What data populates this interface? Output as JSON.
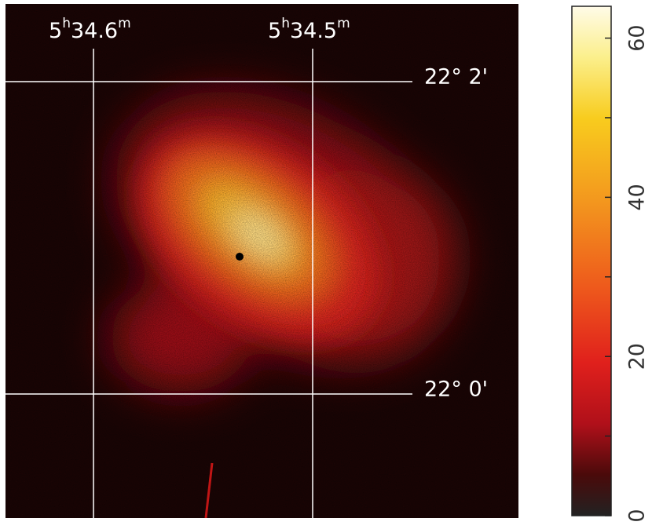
{
  "image": {
    "ra_labels": [
      {
        "hours": "5",
        "h": "h",
        "minutes": "34.6",
        "m": "m"
      },
      {
        "hours": "5",
        "h": "h",
        "minutes": "34.5",
        "m": "m"
      }
    ],
    "dec_labels": [
      "22° 2'",
      "22° 0'"
    ]
  },
  "colorbar": {
    "lim": [
      0,
      64
    ],
    "ticks": [
      0,
      20,
      40,
      60
    ],
    "minor_ticks": [
      10,
      30,
      50
    ]
  }
}
